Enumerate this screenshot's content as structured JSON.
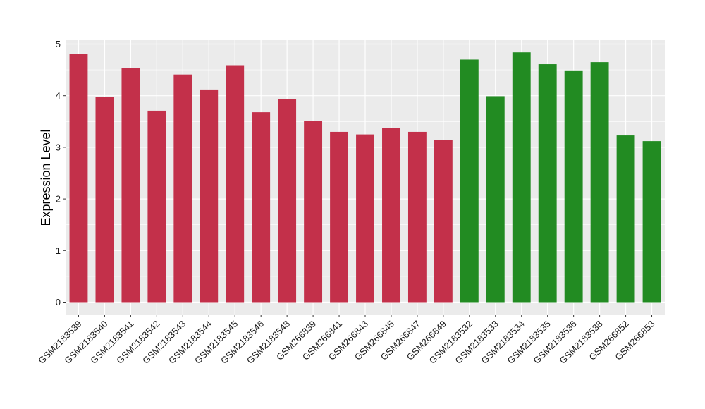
{
  "chart_data": {
    "type": "bar",
    "title": "",
    "xlabel": "",
    "ylabel": "Expression Level",
    "ylim": [
      0,
      5.1
    ],
    "yticks": [
      0,
      1,
      2,
      3,
      4,
      5
    ],
    "grid": true,
    "legend": "none",
    "categories": [
      "GSM2183539",
      "GSM2183540",
      "GSM2183541",
      "GSM2183542",
      "GSM2183543",
      "GSM2183544",
      "GSM2183545",
      "GSM2183546",
      "GSM2183548",
      "GSM266839",
      "GSM266841",
      "GSM266843",
      "GSM266845",
      "GSM266847",
      "GSM266849",
      "GSM2183532",
      "GSM2183533",
      "GSM2183534",
      "GSM2183535",
      "GSM2183536",
      "GSM2183538",
      "GSM266852",
      "GSM266853"
    ],
    "values": [
      4.81,
      3.97,
      4.53,
      3.71,
      4.41,
      4.12,
      4.59,
      3.68,
      3.94,
      3.51,
      3.3,
      3.25,
      3.37,
      3.3,
      3.14,
      4.7,
      3.99,
      4.84,
      4.61,
      4.49,
      4.65,
      3.23,
      3.12
    ],
    "group_colors": [
      "#C3304A",
      "#228B22"
    ],
    "bar_group": [
      0,
      0,
      0,
      0,
      0,
      0,
      0,
      0,
      0,
      0,
      0,
      0,
      0,
      0,
      0,
      1,
      1,
      1,
      1,
      1,
      1,
      1,
      1
    ],
    "panel_color": "#EBEBEB",
    "grid_color": "#FFFFFF"
  }
}
